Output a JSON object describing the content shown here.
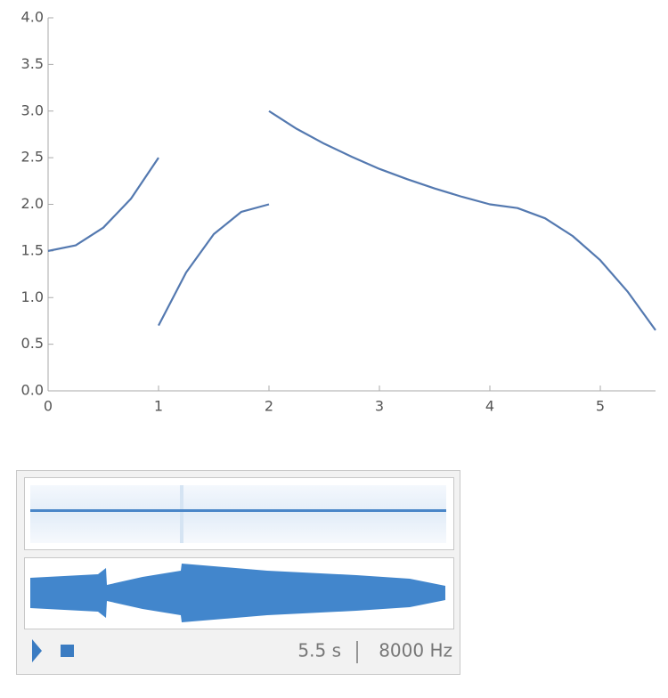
{
  "chart_data": {
    "type": "line",
    "x": [
      0,
      0.25,
      0.5,
      0.75,
      1,
      null,
      1,
      1.25,
      1.5,
      1.75,
      2,
      null,
      2,
      2.25,
      2.5,
      2.75,
      3,
      3.25,
      3.5,
      3.75,
      4,
      4.25,
      4.5,
      4.75,
      5,
      5.25,
      5.5
    ],
    "series": [
      {
        "color": "#5479b0",
        "values": [
          1.5,
          1.56,
          1.75,
          2.06,
          2.5,
          null,
          0.7,
          1.27,
          1.68,
          1.92,
          2.0,
          null,
          3.0,
          2.81,
          2.65,
          2.51,
          2.38,
          2.27,
          2.17,
          2.08,
          2.0,
          1.96,
          1.85,
          1.66,
          1.4,
          1.06,
          0.65
        ]
      }
    ],
    "xlim": [
      0,
      5.5
    ],
    "ylim": [
      0,
      4
    ],
    "xticks": [
      0,
      1,
      2,
      3,
      4,
      5
    ],
    "yticks": [
      {
        "value": 0,
        "label": "0.0"
      },
      {
        "value": 0.5,
        "label": "0.5"
      },
      {
        "value": 1,
        "label": "1.0"
      },
      {
        "value": 1.5,
        "label": "1.5"
      },
      {
        "value": 2,
        "label": "2.0"
      },
      {
        "value": 2.5,
        "label": "2.5"
      },
      {
        "value": 3,
        "label": "3.0"
      },
      {
        "value": 3.5,
        "label": "3.5"
      },
      {
        "value": 4,
        "label": "4.0"
      }
    ]
  },
  "sound": {
    "duration": "5.5 s",
    "sample_rate": "8000 Hz"
  }
}
